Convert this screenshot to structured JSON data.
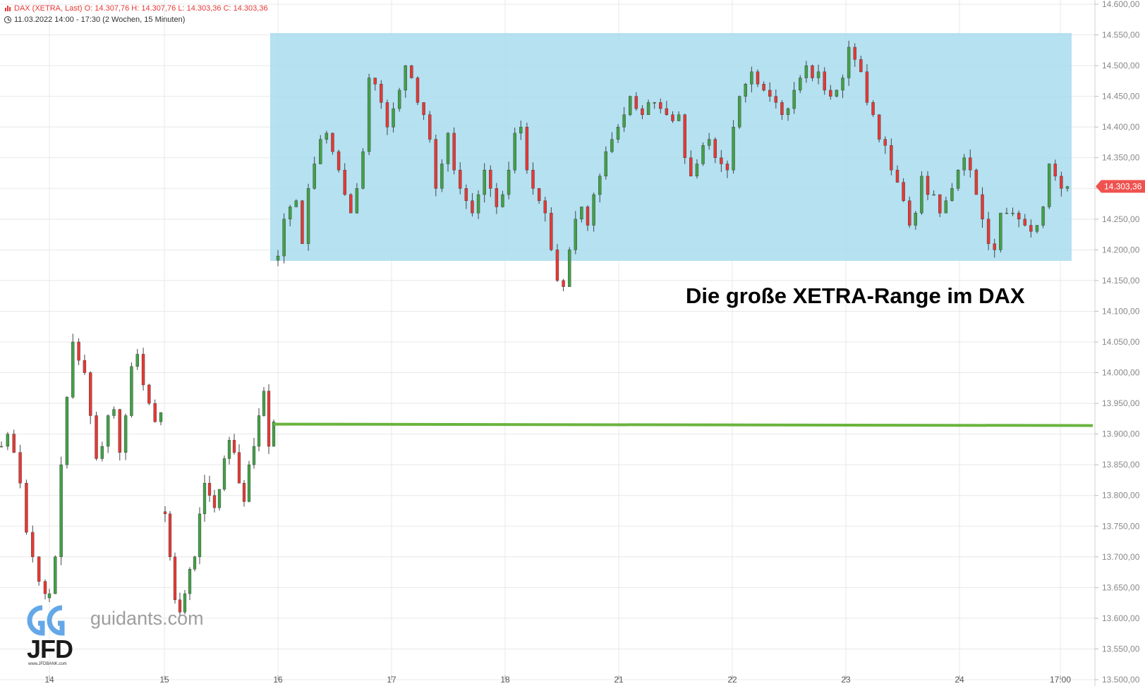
{
  "header": {
    "instrument_line": "DAX (XETRA, Last)  O: 14.307,76  H: 14.307,76  L: 14.303,36  C: 14.303,36",
    "period_line": "11.03.2022 14:00 - 17:30   (2 Wochen, 15 Minuten)"
  },
  "annotation": "Die große XETRA-Range im DAX",
  "branding": {
    "guidants": "guidants.com",
    "jfd": "JFD",
    "jfd_sub": "www.JFDBANK.com"
  },
  "colors": {
    "up": "#43a047",
    "down": "#e53935",
    "range_box": "#a8dcef",
    "level_line": "#6ab43e",
    "price_tag": "#ef5350",
    "grid": "#e8e8e8"
  },
  "chart_data": {
    "type": "candlestick",
    "price_axis": {
      "ylim": [
        13500,
        14600
      ],
      "ticks": [
        14600,
        14550,
        14500,
        14450,
        14400,
        14350,
        14300,
        14250,
        14200,
        14150,
        14100,
        14050,
        14000,
        13950,
        13900,
        13850,
        13800,
        13750,
        13700,
        13650,
        13600,
        13550,
        13500
      ],
      "tick_labels": [
        "14.600,00",
        "14.550,00",
        "14.500,00",
        "14.450,00",
        "14.400,00",
        "14.350,00",
        "14.300,00",
        "14.250,00",
        "14.200,00",
        "14.150,00",
        "14.100,00",
        "14.050,00",
        "14.000,00",
        "13.950,00",
        "13.900,00",
        "13.850,00",
        "13.800,00",
        "13.750,00",
        "13.700,00",
        "13.650,00",
        "13.600,00",
        "13.550,00",
        "13.500,00"
      ]
    },
    "x_axis_labels": [
      "14",
      "15",
      "16",
      "17",
      "18",
      "21",
      "22",
      "23",
      "24",
      "17:00"
    ],
    "last_price": 14303.36,
    "last_price_label": "14.303,36",
    "range_zone": {
      "from": 14182,
      "to": 14553
    },
    "support_level": 13915,
    "grid": true,
    "sessions": [
      {
        "label": "14",
        "path": [
          13880,
          13900,
          13870,
          13820,
          13740,
          13700,
          13660,
          13640
        ]
      },
      {
        "label": "14b",
        "path": [
          13640,
          13700,
          13850,
          13960,
          14050,
          14020,
          14000,
          13930,
          13860,
          13880,
          13930,
          13940,
          13870,
          13930,
          14010,
          14030,
          13980,
          13950,
          13920,
          13935
        ]
      },
      {
        "label": "15",
        "path": [
          13770,
          13700,
          13630,
          13610,
          13640,
          13680,
          13700,
          13770,
          13820,
          13800,
          13780,
          13810,
          13860,
          13890,
          13870,
          13820,
          13790,
          13850,
          13880,
          13930,
          13970,
          13880,
          13920
        ]
      },
      {
        "label": "16",
        "path": [
          14190,
          14250,
          14270,
          14280,
          14210,
          14300,
          14340,
          14380,
          14390,
          14360,
          14330,
          14290,
          14260,
          14300,
          14360,
          14480,
          14470,
          14440,
          14400,
          14430,
          14460,
          14500,
          14480,
          14440,
          14420,
          14380,
          14300,
          14340,
          14390,
          14330,
          14300,
          14280,
          14260,
          14290,
          14330,
          14300,
          14270,
          14290,
          14330,
          14390,
          14400,
          14330,
          14300,
          14280,
          14260,
          14200,
          14150,
          14140,
          14200,
          14250,
          14270,
          14240,
          14290,
          14320,
          14360,
          14380,
          14400,
          14420,
          14450,
          14430,
          14420,
          14440,
          14440,
          14430,
          14420,
          14410,
          14420,
          14350,
          14320,
          14340,
          14370,
          14380,
          14350,
          14340,
          14330,
          14400,
          14450,
          14470,
          14490,
          14470,
          14460,
          14450,
          14440,
          14420,
          14430,
          14460,
          14480,
          14500,
          14480,
          14490,
          14460,
          14450,
          14460,
          14480,
          14530,
          14510,
          14490,
          14440,
          14420,
          14380,
          14370,
          14330,
          14310,
          14280,
          14240,
          14260,
          14320,
          14290,
          14290,
          14260,
          14280,
          14300,
          14330,
          14350,
          14330,
          14290,
          14250,
          14210,
          14200,
          14260,
          14260,
          14260,
          14250,
          14240,
          14230,
          14240,
          14270,
          14340,
          14320,
          14300,
          14303
        ]
      }
    ]
  }
}
